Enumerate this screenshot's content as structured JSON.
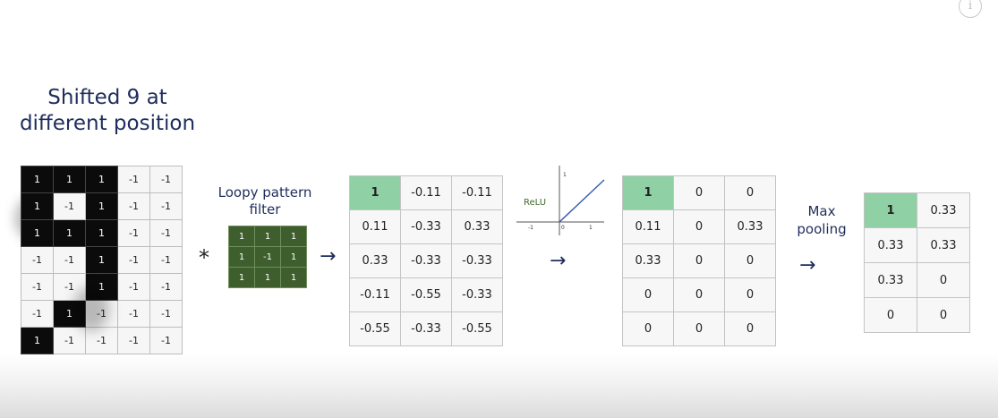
{
  "title": {
    "line1": "Shifted 9 at",
    "line2": "different position"
  },
  "info_icon_glyph": "i",
  "input_grid": [
    [
      "1",
      "1",
      "1",
      "-1",
      "-1"
    ],
    [
      "1",
      "-1",
      "1",
      "-1",
      "-1"
    ],
    [
      "1",
      "1",
      "1",
      "-1",
      "-1"
    ],
    [
      "-1",
      "-1",
      "1",
      "-1",
      "-1"
    ],
    [
      "-1",
      "-1",
      "1",
      "-1",
      "-1"
    ],
    [
      "-1",
      "1",
      "-1",
      "-1",
      "-1"
    ],
    [
      "1",
      "-1",
      "-1",
      "-1",
      "-1"
    ]
  ],
  "input_black_cells": [
    [
      0,
      0
    ],
    [
      0,
      1
    ],
    [
      0,
      2
    ],
    [
      1,
      0
    ],
    [
      1,
      2
    ],
    [
      2,
      0
    ],
    [
      2,
      1
    ],
    [
      2,
      2
    ],
    [
      3,
      2
    ],
    [
      4,
      2
    ],
    [
      5,
      1
    ],
    [
      6,
      0
    ]
  ],
  "filter_label": {
    "line1": "Loopy pattern",
    "line2": "filter"
  },
  "conv_operator": "*",
  "filter_grid": [
    [
      "1",
      "1",
      "1"
    ],
    [
      "1",
      "-1",
      "1"
    ],
    [
      "1",
      "1",
      "1"
    ]
  ],
  "arrow_glyph": "→",
  "feature_map": [
    [
      "1",
      "-0.11",
      "-0.11"
    ],
    [
      "0.11",
      "-0.33",
      "0.33"
    ],
    [
      "0.33",
      "-0.33",
      "-0.33"
    ],
    [
      "-0.11",
      "-0.55",
      "-0.33"
    ],
    [
      "-0.55",
      "-0.33",
      "-0.55"
    ]
  ],
  "relu": {
    "label": "ReLU",
    "tick_neg1": "-1",
    "tick_0": "0",
    "tick_1": "1",
    "y_tick_1": "1"
  },
  "relu_output": [
    [
      "1",
      "0",
      "0"
    ],
    [
      "0.11",
      "0",
      "0.33"
    ],
    [
      "0.33",
      "0",
      "0"
    ],
    [
      "0",
      "0",
      "0"
    ],
    [
      "0",
      "0",
      "0"
    ]
  ],
  "pool_label": {
    "line1": "Max",
    "line2": "pooling"
  },
  "pooled": [
    [
      "1",
      "0.33"
    ],
    [
      "0.33",
      "0.33"
    ],
    [
      "0.33",
      "0"
    ],
    [
      "0",
      "0"
    ]
  ],
  "highlight_color": "#8fd0a5"
}
